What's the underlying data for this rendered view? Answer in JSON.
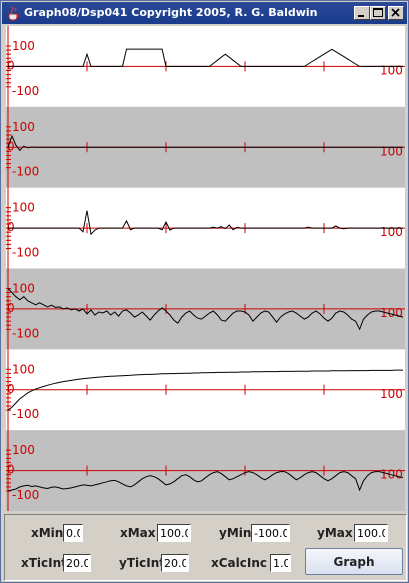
{
  "window": {
    "title": "Graph08/Dsp041 Copyright 2005, R. G. Baldwin"
  },
  "title_buttons": [
    "minimize",
    "maximize",
    "close"
  ],
  "colors": {
    "axis": "#cc0000",
    "band": "#c0c0c0",
    "trace": "#000000",
    "title_bar": "#1e3f8f"
  },
  "plot": {
    "y_max_label": "100",
    "y_zero_label": "0",
    "y_min_label": "-100",
    "right_label": "100"
  },
  "chart_data": {
    "type": "line",
    "x_range": [
      0,
      100
    ],
    "y_range": [
      -100,
      100
    ],
    "x_tick_interval": 20,
    "y_tick_interval": 20,
    "panels": 6,
    "series": [
      {
        "values": [
          0,
          0,
          0,
          0,
          0,
          0,
          0,
          0,
          0,
          0,
          0,
          0,
          0,
          0,
          0,
          0,
          0,
          0,
          0,
          0,
          60,
          0,
          0,
          0,
          0,
          0,
          0,
          0,
          0,
          0,
          85,
          85,
          85,
          85,
          85,
          85,
          85,
          85,
          85,
          85,
          0,
          0,
          0,
          0,
          0,
          0,
          0,
          0,
          0,
          0,
          0,
          0,
          15,
          30,
          45,
          60,
          45,
          30,
          15,
          0,
          0,
          0,
          0,
          0,
          0,
          0,
          0,
          0,
          0,
          0,
          0,
          0,
          0,
          0,
          0,
          0,
          12,
          24,
          36,
          48,
          60,
          72,
          84,
          72,
          60,
          48,
          36,
          24,
          12,
          0,
          0,
          0,
          0,
          0,
          0,
          0,
          0,
          0,
          0,
          0,
          0
        ]
      },
      {
        "values": [
          0,
          55,
          10,
          -15,
          5,
          -3,
          1,
          0,
          0,
          0,
          0,
          0,
          0,
          0,
          0,
          0,
          0,
          0,
          0,
          0,
          0,
          0,
          0,
          0,
          0,
          0,
          0,
          0,
          0,
          0,
          0,
          0,
          0,
          0,
          0,
          0,
          0,
          0,
          0,
          0,
          0,
          0,
          0,
          0,
          0,
          0,
          0,
          0,
          0,
          0,
          0,
          0,
          0,
          0,
          0,
          0,
          0,
          0,
          0,
          0,
          0,
          0,
          0,
          0,
          0,
          0,
          0,
          0,
          0,
          0,
          0,
          0,
          0,
          0,
          0,
          0,
          0,
          0,
          0,
          0,
          0,
          0,
          0,
          0,
          0,
          0,
          0,
          0,
          0,
          0,
          0,
          0,
          0,
          0,
          0,
          0,
          0,
          0,
          0,
          0,
          0
        ]
      },
      {
        "values": [
          0,
          0,
          0,
          0,
          0,
          0,
          0,
          0,
          0,
          0,
          0,
          0,
          0,
          0,
          0,
          0,
          0,
          0,
          0,
          -18,
          85,
          -30,
          -10,
          0,
          0,
          0,
          0,
          0,
          0,
          0,
          35,
          -8,
          0,
          0,
          0,
          0,
          0,
          0,
          0,
          -8,
          30,
          -10,
          0,
          0,
          0,
          0,
          0,
          0,
          0,
          0,
          0,
          0,
          5,
          0,
          7,
          -3,
          15,
          -8,
          4,
          0,
          0,
          0,
          0,
          0,
          0,
          0,
          0,
          0,
          0,
          0,
          0,
          0,
          0,
          0,
          0,
          0,
          5,
          0,
          0,
          0,
          0,
          0,
          0,
          10,
          0,
          -3,
          0,
          0,
          0,
          0,
          0,
          0,
          0,
          0,
          0,
          0,
          0,
          0,
          0,
          0,
          0
        ]
      },
      {
        "values": [
          100,
          80,
          60,
          45,
          60,
          40,
          30,
          20,
          30,
          20,
          10,
          18,
          8,
          10,
          0,
          5,
          -5,
          0,
          -10,
          0,
          -25,
          -5,
          -30,
          -15,
          -20,
          -10,
          -30,
          -15,
          -35,
          -10,
          -5,
          -20,
          -40,
          -30,
          -15,
          -35,
          -55,
          -30,
          -10,
          5,
          -10,
          -30,
          -55,
          -70,
          -40,
          -20,
          -10,
          -30,
          -45,
          -50,
          -35,
          -20,
          -10,
          -30,
          -55,
          -60,
          -40,
          -20,
          -10,
          -10,
          -15,
          -30,
          -60,
          -40,
          -20,
          -10,
          -15,
          -40,
          -65,
          -40,
          -25,
          -15,
          -10,
          -20,
          -35,
          -50,
          -40,
          -20,
          -10,
          -25,
          -45,
          -60,
          -45,
          -20,
          -10,
          -15,
          -30,
          -50,
          -60,
          -100,
          -50,
          -30,
          -15,
          -10,
          -10,
          -15,
          -20,
          -25,
          -30,
          -35,
          -40
        ]
      },
      {
        "values": [
          -100,
          -85,
          -65,
          -45,
          -30,
          -15,
          -5,
          3,
          10,
          16,
          22,
          27,
          32,
          36,
          40,
          43,
          46,
          49,
          52,
          54,
          56,
          58,
          60,
          62,
          63,
          65,
          66,
          67,
          68,
          69,
          70,
          71,
          72,
          73,
          74,
          75,
          75,
          76,
          77,
          78,
          78,
          79,
          79,
          80,
          80,
          81,
          81,
          82,
          82,
          83,
          83,
          84,
          84,
          85,
          85,
          85,
          86,
          86,
          86,
          87,
          87,
          87,
          88,
          88,
          88,
          89,
          89,
          89,
          89,
          90,
          90,
          90,
          90,
          91,
          91,
          91,
          91,
          92,
          92,
          92,
          92,
          92,
          93,
          93,
          93,
          93,
          93,
          94,
          94,
          94,
          94,
          94,
          95,
          95,
          95,
          95,
          95,
          95,
          96,
          96,
          96
        ]
      },
      {
        "values": [
          -100,
          -95,
          -90,
          -80,
          -75,
          -72,
          -78,
          -75,
          -80,
          -85,
          -88,
          -82,
          -80,
          -85,
          -90,
          -88,
          -85,
          -80,
          -75,
          -70,
          -72,
          -75,
          -70,
          -65,
          -60,
          -55,
          -50,
          -48,
          -55,
          -65,
          -75,
          -80,
          -70,
          -55,
          -40,
          -30,
          -25,
          -30,
          -40,
          -55,
          -70,
          -65,
          -55,
          -40,
          -25,
          -20,
          -30,
          -45,
          -55,
          -50,
          -35,
          -20,
          -10,
          -5,
          -15,
          -30,
          -45,
          -40,
          -30,
          -20,
          -10,
          -5,
          -10,
          -20,
          -35,
          -45,
          -35,
          -20,
          -10,
          -5,
          -5,
          -15,
          -30,
          -45,
          -35,
          -20,
          -10,
          -5,
          -10,
          -25,
          -40,
          -50,
          -40,
          -25,
          -10,
          -5,
          -10,
          -25,
          -40,
          -95,
          -50,
          -25,
          -10,
          -5,
          -5,
          -10,
          -15,
          -20,
          -25,
          -30,
          -35
        ]
      }
    ]
  },
  "controls": {
    "xmin": {
      "label": "xMin",
      "value": "0.0"
    },
    "xmax": {
      "label": "xMax",
      "value": "100.0"
    },
    "ymin": {
      "label": "yMin",
      "value": "-100.0"
    },
    "ymax": {
      "label": "yMax",
      "value": "100.0"
    },
    "xticint": {
      "label": "xTicInt",
      "value": "20.0"
    },
    "yticint": {
      "label": "yTicInt",
      "value": "20.0"
    },
    "xcalcinc": {
      "label": "xCalcInc",
      "value": "1.0"
    },
    "graph_label": "Graph"
  }
}
